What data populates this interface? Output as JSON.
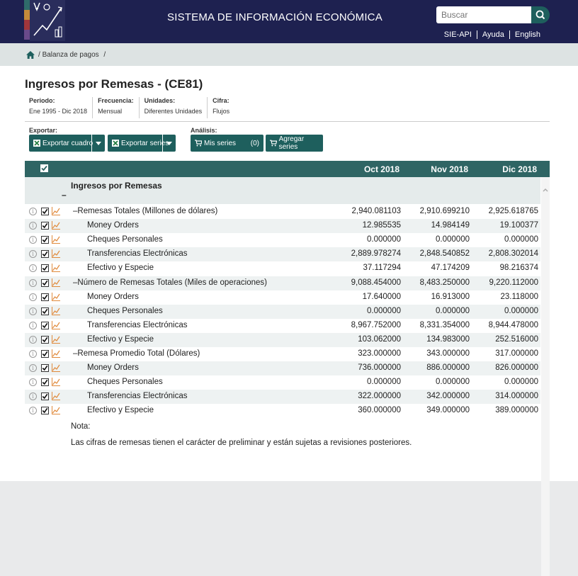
{
  "header": {
    "title": "SISTEMA DE INFORMACIÓN ECONÓMICA",
    "search_placeholder": "Buscar",
    "links": [
      "SIE-API",
      "Ayuda",
      "English"
    ]
  },
  "breadcrumb": {
    "sep": "/",
    "item": "Balanza de pagos",
    "trailing": "/"
  },
  "page": {
    "title": "Ingresos por Remesas - (CE81)",
    "meta": [
      {
        "label": "Periodo:",
        "value": "Ene 1995 - Dic 2018"
      },
      {
        "label": "Frecuencia:",
        "value": "Mensual"
      },
      {
        "label": "Unidades:",
        "value": "Diferentes Unidades"
      },
      {
        "label": "Cifra:",
        "value": "Flujos"
      }
    ]
  },
  "toolbar": {
    "export_label": "Exportar:",
    "analysis_label": "Análisis:",
    "export_table": "Exportar cuadro",
    "export_series": "Exportar series",
    "my_series": "Mis series",
    "my_series_count": "(0)",
    "add_series": "Agregar series"
  },
  "table": {
    "columns": [
      "Oct 2018",
      "Nov 2018",
      "Dic 2018"
    ],
    "group_title": "Ingresos por Remesas",
    "group_toggle": "–",
    "rows": [
      {
        "name": "Remesas Totales (Millones de dólares)",
        "level": 1,
        "values": [
          "2,940.081103",
          "2,910.699210",
          "2,925.618765"
        ]
      },
      {
        "name": "Money Orders",
        "level": 2,
        "values": [
          "12.985535",
          "14.984149",
          "19.100377"
        ]
      },
      {
        "name": "Cheques Personales",
        "level": 2,
        "values": [
          "0.000000",
          "0.000000",
          "0.000000"
        ]
      },
      {
        "name": "Transferencias Electrónicas",
        "level": 2,
        "values": [
          "2,889.978274",
          "2,848.540852",
          "2,808.302014"
        ]
      },
      {
        "name": "Efectivo y Especie",
        "level": 2,
        "values": [
          "37.117294",
          "47.174209",
          "98.216374"
        ]
      },
      {
        "name": "Número de Remesas Totales (Miles de operaciones)",
        "level": 1,
        "values": [
          "9,088.454000",
          "8,483.250000",
          "9,220.112000"
        ]
      },
      {
        "name": "Money Orders",
        "level": 2,
        "values": [
          "17.640000",
          "16.913000",
          "23.118000"
        ]
      },
      {
        "name": "Cheques Personales",
        "level": 2,
        "values": [
          "0.000000",
          "0.000000",
          "0.000000"
        ]
      },
      {
        "name": "Transferencias Electrónicas",
        "level": 2,
        "values": [
          "8,967.752000",
          "8,331.354000",
          "8,944.478000"
        ]
      },
      {
        "name": "Efectivo y Especie",
        "level": 2,
        "values": [
          "103.062000",
          "134.983000",
          "252.516000"
        ]
      },
      {
        "name": "Remesa Promedio Total (Dólares)",
        "level": 1,
        "values": [
          "323.000000",
          "343.000000",
          "317.000000"
        ]
      },
      {
        "name": "Money Orders",
        "level": 2,
        "values": [
          "736.000000",
          "886.000000",
          "826.000000"
        ]
      },
      {
        "name": "Cheques Personales",
        "level": 2,
        "values": [
          "0.000000",
          "0.000000",
          "0.000000"
        ]
      },
      {
        "name": "Transferencias Electrónicas",
        "level": 2,
        "values": [
          "322.000000",
          "342.000000",
          "314.000000"
        ]
      },
      {
        "name": "Efectivo y Especie",
        "level": 2,
        "values": [
          "360.000000",
          "349.000000",
          "389.000000"
        ]
      }
    ],
    "note_label": "Nota:",
    "note_text": "Las cifras de remesas tienen el carácter de preliminar y están sujetas a revisiones posteriores."
  },
  "colors": {
    "header_bg": "#1e2150",
    "accent": "#1e5f5d",
    "table_header": "#2f6564",
    "chart_icon": "#e08a3c"
  }
}
